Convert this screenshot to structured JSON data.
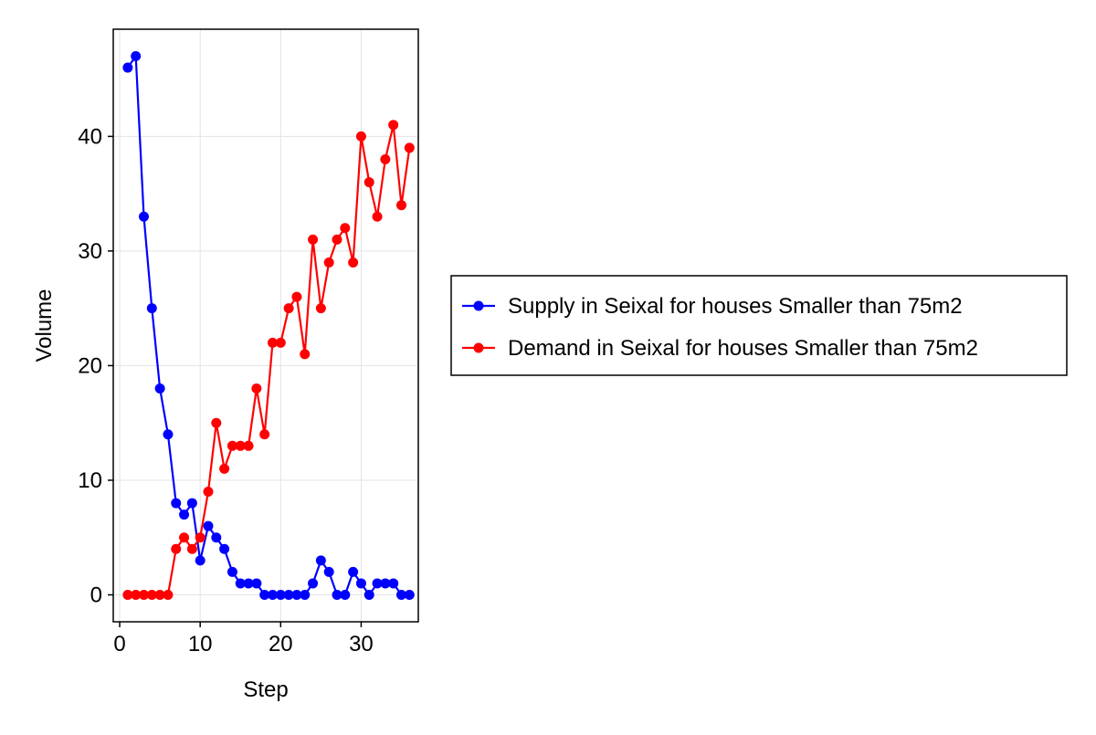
{
  "chart_data": {
    "type": "line",
    "title": "",
    "xlabel": "Step",
    "ylabel": "Volume",
    "xlim": [
      -0.8,
      37.1
    ],
    "ylim": [
      -2.35,
      49.35
    ],
    "xticks": [
      0,
      10,
      20,
      30
    ],
    "yticks": [
      0,
      10,
      20,
      30,
      40
    ],
    "grid": true,
    "legend_position": "right, outside plot",
    "x": [
      1,
      2,
      3,
      4,
      5,
      6,
      7,
      8,
      9,
      10,
      11,
      12,
      13,
      14,
      15,
      16,
      17,
      18,
      19,
      20,
      21,
      22,
      23,
      24,
      25,
      26,
      27,
      28,
      29,
      30,
      31,
      32,
      33,
      34,
      35,
      36
    ],
    "series": [
      {
        "name": "Supply in Seixal for houses Smaller than 75m2",
        "color": "#0000ff",
        "marker": "circle",
        "values": [
          46,
          47,
          33,
          25,
          18,
          14,
          8,
          7,
          8,
          3,
          6,
          5,
          4,
          2,
          1,
          1,
          1,
          0,
          0,
          0,
          0,
          0,
          0,
          1,
          3,
          2,
          0,
          0,
          2,
          1,
          0,
          1,
          1,
          1,
          0,
          0
        ]
      },
      {
        "name": "Demand in Seixal for houses Smaller than 75m2",
        "color": "#ff0000",
        "marker": "circle",
        "values": [
          0,
          0,
          0,
          0,
          0,
          0,
          4,
          5,
          4,
          5,
          9,
          15,
          11,
          13,
          13,
          13,
          18,
          14,
          22,
          22,
          25,
          26,
          21,
          31,
          25,
          29,
          31,
          32,
          29,
          40,
          36,
          33,
          38,
          41,
          34,
          39
        ]
      }
    ]
  }
}
